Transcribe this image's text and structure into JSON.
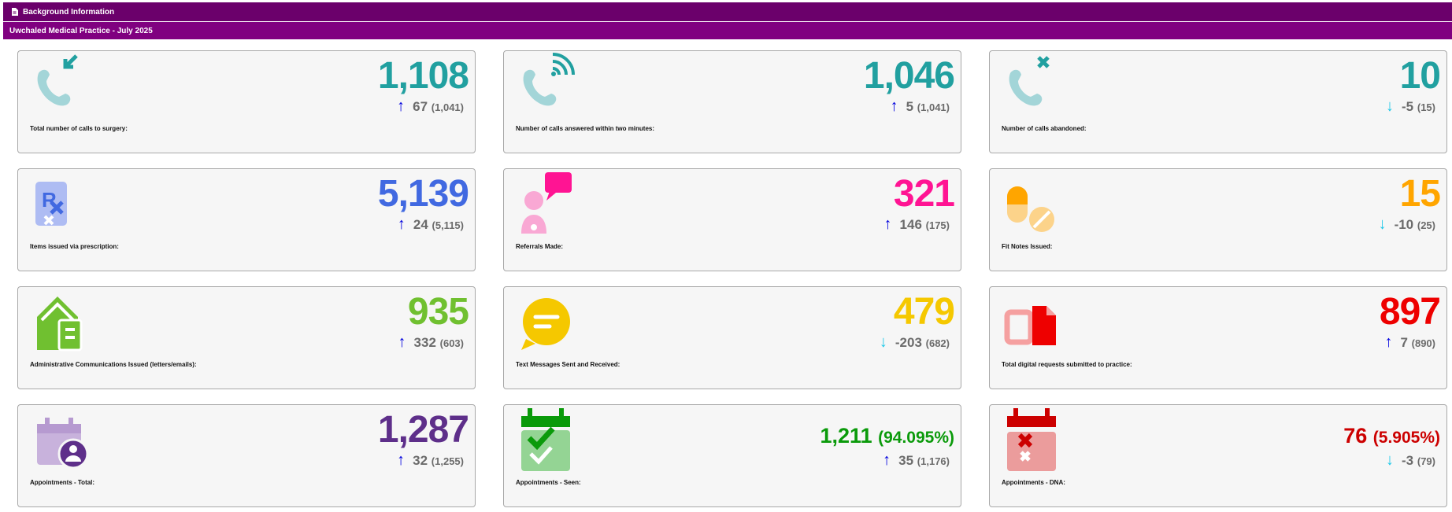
{
  "header": {
    "title": "Background Information",
    "subtitle": "Uwchaled Medical Practice - July 2025"
  },
  "colors": {
    "up": "#0000dd",
    "down": "#1ec8e8"
  },
  "cards": [
    {
      "label": "Total number of calls to surgery:",
      "value": "1,108",
      "change": "67",
      "previous": "(1,041)",
      "direction": "up",
      "color": "#21a0a0",
      "icon": "phone-incoming-icon"
    },
    {
      "label": "Number of calls answered within two minutes:",
      "value": "1,046",
      "change": "5",
      "previous": "(1,041)",
      "direction": "up",
      "color": "#21a0a0",
      "icon": "phone-answered-icon"
    },
    {
      "label": "Number of calls abandoned:",
      "value": "10",
      "change": "-5",
      "previous": "(15)",
      "direction": "down",
      "color": "#21a0a0",
      "icon": "phone-missed-icon"
    },
    {
      "label": "Items issued via prescription:",
      "value": "5,139",
      "change": "24",
      "previous": "(5,115)",
      "direction": "up",
      "color": "#4169e1",
      "icon": "prescription-icon"
    },
    {
      "label": "Referrals Made:",
      "value": "321",
      "change": "146",
      "previous": "(175)",
      "direction": "up",
      "color": "#ff1493",
      "icon": "doctor-chat-icon"
    },
    {
      "label": "Fit Notes Issued:",
      "value": "15",
      "change": "-10",
      "previous": "(25)",
      "direction": "down",
      "color": "#ffa500",
      "icon": "pills-icon"
    },
    {
      "label": "Administrative Communications Issued (letters/emails):",
      "value": "935",
      "change": "332",
      "previous": "(603)",
      "direction": "up",
      "color": "#70c030",
      "icon": "house-letter-icon"
    },
    {
      "label": "Text Messages Sent and Received:",
      "value": "479",
      "change": "-203",
      "previous": "(682)",
      "direction": "down",
      "color": "#f5c800",
      "icon": "message-icon"
    },
    {
      "label": "Total digital requests submitted to practice:",
      "value": "897",
      "change": "7",
      "previous": "(890)",
      "direction": "up",
      "color": "#ee0000",
      "icon": "digital-request-icon"
    },
    {
      "label": "Appointments - Total:",
      "value": "1,287",
      "change": "32",
      "previous": "(1,255)",
      "direction": "up",
      "color": "#5e2f8a",
      "icon": "calendar-user-icon"
    },
    {
      "label": "Appointments - Seen:",
      "value": "1,211",
      "percent": "(94.095%)",
      "change": "35",
      "previous": "(1,176)",
      "direction": "up",
      "color": "#0a9a0a",
      "icon": "calendar-check-icon"
    },
    {
      "label": "Appointments - DNA:",
      "value": "76",
      "percent": "(5.905%)",
      "change": "-3",
      "previous": "(79)",
      "direction": "down",
      "color": "#cc0000",
      "icon": "calendar-x-icon"
    }
  ]
}
